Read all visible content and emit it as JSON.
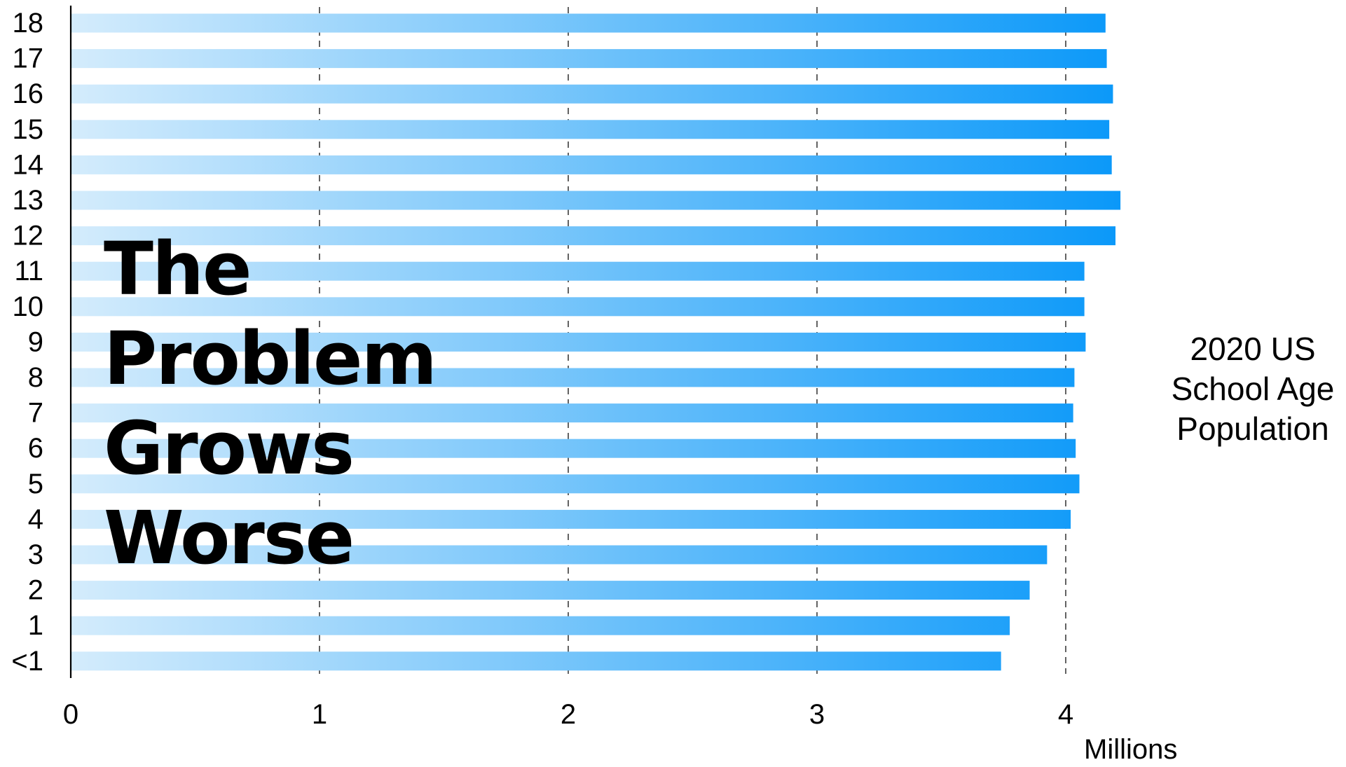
{
  "chart_data": {
    "type": "bar",
    "orientation": "horizontal",
    "categories": [
      "18",
      "17",
      "16",
      "15",
      "14",
      "13",
      "12",
      "11",
      "10",
      "9",
      "8",
      "7",
      "6",
      "5",
      "4",
      "3",
      "2",
      "1",
      "<1"
    ],
    "values": [
      4.16,
      4.165,
      4.19,
      4.175,
      4.185,
      4.22,
      4.2,
      4.075,
      4.075,
      4.08,
      4.035,
      4.03,
      4.04,
      4.055,
      4.02,
      3.925,
      3.855,
      3.775,
      3.74
    ],
    "xlim": [
      0,
      4.8
    ],
    "xticks": [
      "0",
      "1",
      "2",
      "3",
      "4"
    ],
    "x_unit": "Millions",
    "overlay_title": [
      "The",
      "Problem",
      "Grows",
      "Worse"
    ],
    "side_caption": [
      "2020 US",
      "School Age",
      "Population"
    ],
    "grid": "vertical dashed at 1, 2, 3, 4",
    "legend": "none",
    "colors": {
      "bar_start": "#d4ecfc",
      "bar_end": "#0a98f9",
      "grid": "#3c3c3c",
      "axis": "#000000"
    }
  }
}
